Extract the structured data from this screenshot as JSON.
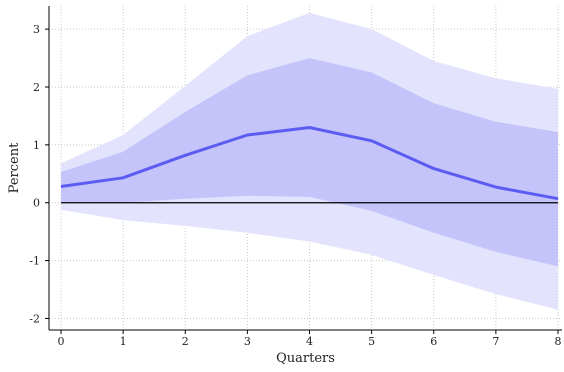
{
  "chart_data": {
    "type": "line",
    "xlabel": "Quarters",
    "ylabel": "Percent",
    "x": [
      0,
      1,
      2,
      3,
      4,
      5,
      6,
      7,
      8
    ],
    "xlim": [
      0,
      8
    ],
    "ylim": [
      -2.2,
      3.4
    ],
    "xticks": [
      "0",
      "1",
      "2",
      "3",
      "4",
      "5",
      "6",
      "7",
      "8"
    ],
    "yticks": [
      "-2",
      "-1",
      "0",
      "1",
      "2",
      "3"
    ],
    "grid": true,
    "zero_line": true,
    "series": [
      {
        "values": [
          0.28,
          0.43,
          0.82,
          1.17,
          1.3,
          1.07,
          0.59,
          0.27,
          0.07
        ]
      }
    ],
    "bands": [
      {
        "lower": [
          -0.12,
          -0.3,
          -0.4,
          -0.52,
          -0.67,
          -0.9,
          -1.25,
          -1.58,
          -1.85
        ],
        "upper": [
          0.68,
          1.17,
          2.02,
          2.88,
          3.28,
          3.0,
          2.45,
          2.15,
          1.97
        ],
        "color": "#e3e3fd"
      },
      {
        "lower": [
          0.0,
          0.0,
          0.07,
          0.12,
          0.1,
          -0.14,
          -0.52,
          -0.85,
          -1.1
        ],
        "upper": [
          0.53,
          0.88,
          1.57,
          2.2,
          2.5,
          2.25,
          1.72,
          1.4,
          1.22
        ],
        "color": "#c4c4fb"
      }
    ],
    "colors": {
      "line": "#5c5cf2",
      "zero": "#000000",
      "grid": "#c8c8c8",
      "axis": "#000000"
    }
  }
}
